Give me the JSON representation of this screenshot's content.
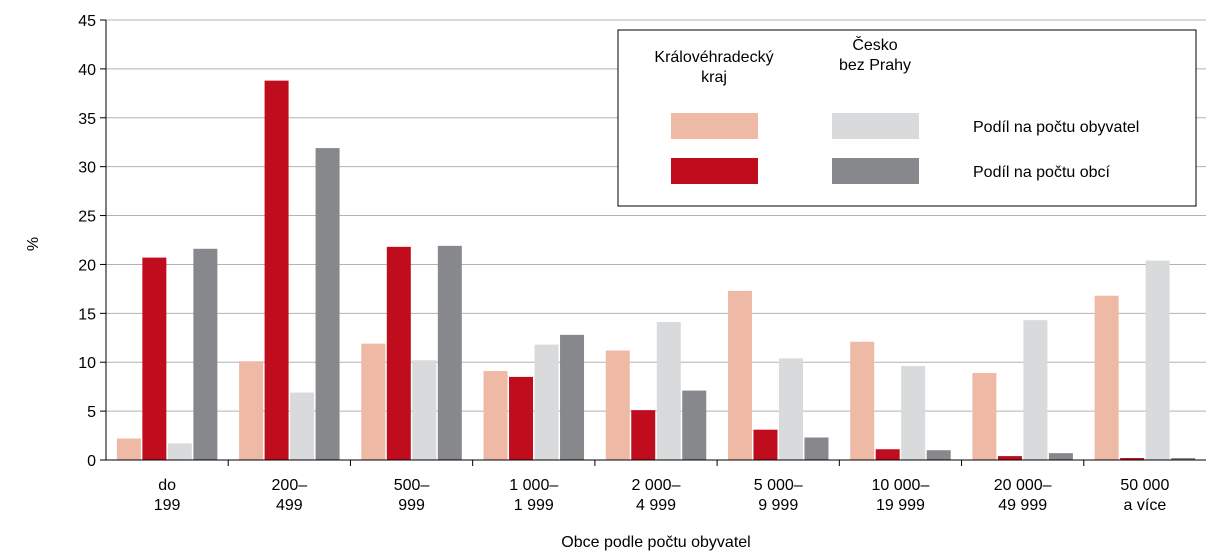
{
  "chart_data": {
    "type": "bar",
    "xlabel": "Obce podle počtu obyvatel",
    "ylabel": "%",
    "ylim": [
      0,
      45
    ],
    "yticks": [
      "0",
      "5",
      "10",
      "15",
      "20",
      "25",
      "30",
      "35",
      "40",
      "45"
    ],
    "grid": "horizontal",
    "legend_position": "top-right",
    "categories": [
      [
        "do",
        "199"
      ],
      [
        "200–",
        "499"
      ],
      [
        "500–",
        "999"
      ],
      [
        "1 000–",
        "1 999"
      ],
      [
        "2 000–",
        "4 999"
      ],
      [
        "5 000–",
        "9 999"
      ],
      [
        "10 000–",
        "19 999"
      ],
      [
        "20 000–",
        "49 999"
      ],
      [
        "50 000",
        "a více"
      ]
    ],
    "legend": {
      "col_headers": [
        [
          "Královéhradecký",
          "kraj"
        ],
        [
          "Česko",
          "bez Prahy"
        ]
      ],
      "row_labels": [
        "Podíl na počtu obyvatel",
        "Podíl na počtu obcí"
      ]
    },
    "series": [
      {
        "region": "Královéhradecký kraj",
        "measure": "Podíl na počtu obyvatel",
        "color": "#eebaa6",
        "values": [
          2.2,
          10.1,
          11.9,
          9.1,
          11.2,
          17.3,
          12.1,
          8.9,
          16.8
        ]
      },
      {
        "region": "Královéhradecký kraj",
        "measure": "Podíl na počtu obcí",
        "color": "#c00d1e",
        "values": [
          20.7,
          38.8,
          21.8,
          8.5,
          5.1,
          3.1,
          1.1,
          0.4,
          0.2
        ]
      },
      {
        "region": "Česko bez Prahy",
        "measure": "Podíl na počtu obyvatel",
        "color": "#d9dadb",
        "values": [
          1.7,
          6.9,
          10.2,
          11.8,
          14.1,
          10.4,
          9.6,
          14.3,
          20.4
        ]
      },
      {
        "region": "Česko bez Prahy",
        "measure": "Podíl na počtu obcí",
        "color": "#86888c",
        "values": [
          21.6,
          31.9,
          21.9,
          12.8,
          7.1,
          2.3,
          1.0,
          0.7,
          0.2
        ]
      }
    ]
  }
}
